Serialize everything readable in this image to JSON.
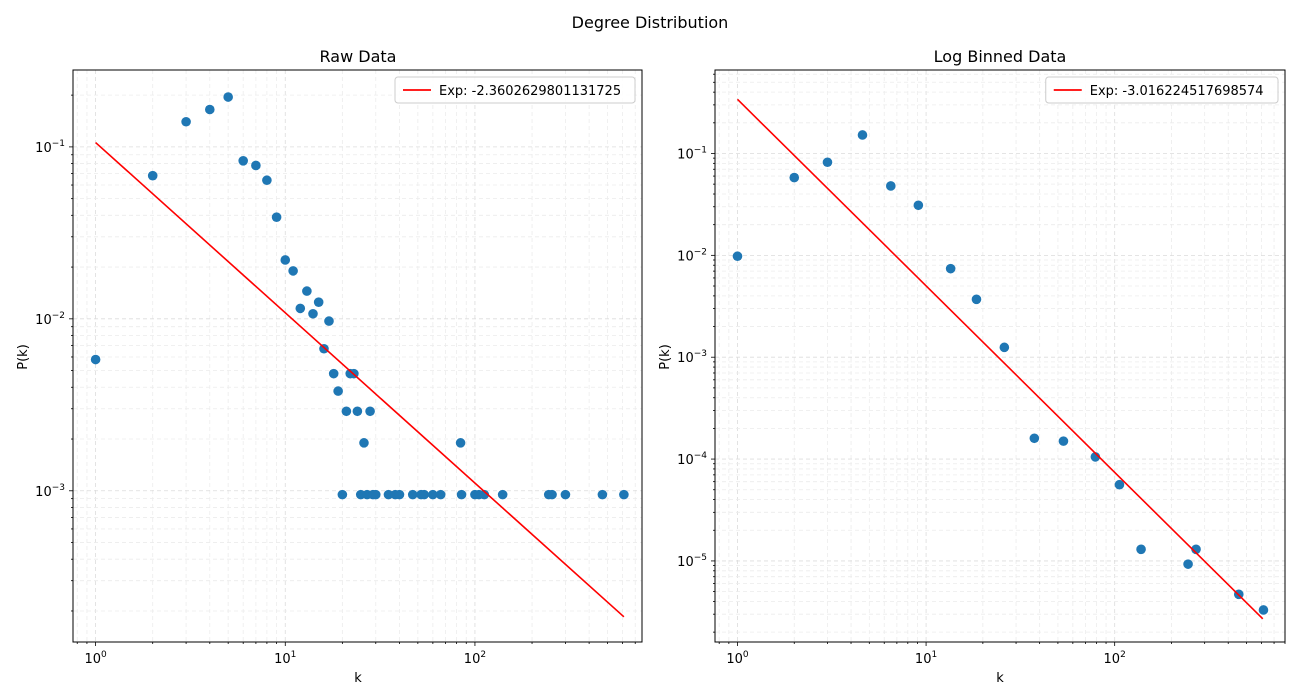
{
  "figure": {
    "suptitle": "Degree Distribution"
  },
  "chart_data": [
    {
      "type": "scatter",
      "title": "Raw Data",
      "xlabel": "k",
      "ylabel": "P(k)",
      "xscale": "log",
      "yscale": "log",
      "xlim": [
        0.76,
        760
      ],
      "ylim": [
        0.000132,
        0.28
      ],
      "xticks": [
        {
          "v": 1,
          "m": "10",
          "e": "0"
        },
        {
          "v": 10,
          "m": "10",
          "e": "1"
        },
        {
          "v": 100,
          "m": "10",
          "e": "2"
        }
      ],
      "yticks": [
        {
          "v": 0.001,
          "m": "10",
          "e": "−3"
        },
        {
          "v": 0.01,
          "m": "10",
          "e": "−2"
        },
        {
          "v": 0.1,
          "m": "10",
          "e": "−1"
        }
      ],
      "grid": true,
      "legend": {
        "position": "top-right",
        "entries": [
          {
            "label": "Exp: -2.3602629801131725",
            "color": "#ff0000"
          }
        ]
      },
      "series": [
        {
          "kind": "points",
          "color": "#1f77b4",
          "points": [
            [
              1,
              0.0058
            ],
            [
              2,
              0.068
            ],
            [
              3,
              0.14
            ],
            [
              4,
              0.165
            ],
            [
              5,
              0.195
            ],
            [
              6,
              0.083
            ],
            [
              7,
              0.078
            ],
            [
              8,
              0.064
            ],
            [
              9,
              0.039
            ],
            [
              10,
              0.022
            ],
            [
              11,
              0.019
            ],
            [
              12,
              0.0115
            ],
            [
              13,
              0.0145
            ],
            [
              14,
              0.0107
            ],
            [
              15,
              0.0125
            ],
            [
              16,
              0.0067
            ],
            [
              17,
              0.0097
            ],
            [
              18,
              0.0048
            ],
            [
              19,
              0.0038
            ],
            [
              20,
              0.00095
            ],
            [
              21,
              0.0029
            ],
            [
              22,
              0.0048
            ],
            [
              23,
              0.0048
            ],
            [
              24,
              0.0029
            ],
            [
              25,
              0.00095
            ],
            [
              26,
              0.0019
            ],
            [
              27,
              0.00095
            ],
            [
              28,
              0.0029
            ],
            [
              29,
              0.00095
            ],
            [
              30,
              0.00095
            ],
            [
              35,
              0.00095
            ],
            [
              38,
              0.00095
            ],
            [
              40,
              0.00095
            ],
            [
              47,
              0.00095
            ],
            [
              52,
              0.00095
            ],
            [
              54,
              0.00095
            ],
            [
              60,
              0.00095
            ],
            [
              66,
              0.00095
            ],
            [
              84,
              0.0019
            ],
            [
              85,
              0.00095
            ],
            [
              100,
              0.00095
            ],
            [
              105,
              0.00095
            ],
            [
              112,
              0.00095
            ],
            [
              140,
              0.00095
            ],
            [
              245,
              0.00095
            ],
            [
              255,
              0.00095
            ],
            [
              300,
              0.00095
            ],
            [
              470,
              0.00095
            ],
            [
              610,
              0.00095
            ]
          ]
        },
        {
          "kind": "line",
          "name": "Exp: -2.3602629801131725",
          "color": "#ff0000",
          "x": [
            1,
            610
          ],
          "y": [
            0.106,
            0.000185
          ]
        }
      ]
    },
    {
      "type": "scatter",
      "title": "Log Binned Data",
      "xlabel": "k",
      "ylabel": "P(k)",
      "xscale": "log",
      "yscale": "log",
      "xlim": [
        0.76,
        800
      ],
      "ylim": [
        1.6e-06,
        0.66
      ],
      "xticks": [
        {
          "v": 1,
          "m": "10",
          "e": "0"
        },
        {
          "v": 10,
          "m": "10",
          "e": "1"
        },
        {
          "v": 100,
          "m": "10",
          "e": "2"
        }
      ],
      "yticks": [
        {
          "v": 1e-05,
          "m": "10",
          "e": "−5"
        },
        {
          "v": 0.0001,
          "m": "10",
          "e": "−4"
        },
        {
          "v": 0.001,
          "m": "10",
          "e": "−3"
        },
        {
          "v": 0.01,
          "m": "10",
          "e": "−2"
        },
        {
          "v": 0.1,
          "m": "10",
          "e": "−1"
        }
      ],
      "grid": true,
      "legend": {
        "position": "top-right",
        "entries": [
          {
            "label": "Exp: -3.016224517698574",
            "color": "#ff0000"
          }
        ]
      },
      "series": [
        {
          "kind": "points",
          "color": "#1f77b4",
          "points": [
            [
              1,
              0.0098
            ],
            [
              2,
              0.058
            ],
            [
              3,
              0.082
            ],
            [
              4.6,
              0.152
            ],
            [
              6.5,
              0.048
            ],
            [
              9.1,
              0.031
            ],
            [
              13.5,
              0.0074
            ],
            [
              18.5,
              0.0037
            ],
            [
              26,
              0.00125
            ],
            [
              37.5,
              0.00016
            ],
            [
              53.5,
              0.00015
            ],
            [
              79,
              0.000105
            ],
            [
              106,
              5.6e-05
            ],
            [
              138,
              1.3e-05
            ],
            [
              245,
              9.3e-06
            ],
            [
              270,
              1.3e-05
            ],
            [
              455,
              4.7e-06
            ],
            [
              615,
              3.3e-06
            ]
          ]
        },
        {
          "kind": "line",
          "name": "Exp: -3.016224517698574",
          "color": "#ff0000",
          "x": [
            1,
            610
          ],
          "y": [
            0.34,
            2.7e-06
          ]
        }
      ]
    }
  ]
}
